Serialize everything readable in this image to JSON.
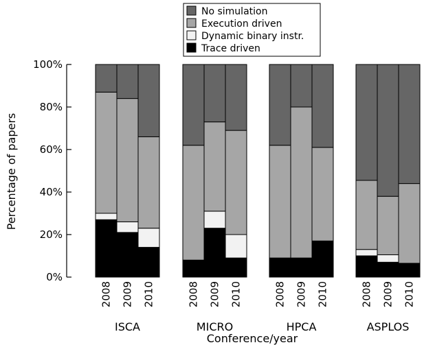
{
  "chart_data": {
    "type": "bar",
    "stacked": true,
    "ylabel": "Percentage of papers",
    "xlabel": "Conference/year",
    "ylim": [
      0,
      100
    ],
    "yticks": [
      "0%",
      "20%",
      "40%",
      "60%",
      "80%",
      "100%"
    ],
    "ytick_values": [
      0,
      20,
      40,
      60,
      80,
      100
    ],
    "grid": false,
    "legend_position": "top-center",
    "groups": [
      "ISCA",
      "MICRO",
      "HPCA",
      "ASPLOS"
    ],
    "years": [
      "2008",
      "2009",
      "2010"
    ],
    "categories": [
      "ISCA 2008",
      "ISCA 2009",
      "ISCA 2010",
      "MICRO 2008",
      "MICRO 2009",
      "MICRO 2010",
      "HPCA 2008",
      "HPCA 2009",
      "HPCA 2010",
      "ASPLOS 2008",
      "ASPLOS 2009",
      "ASPLOS 2010"
    ],
    "series": [
      {
        "name": "Trace driven",
        "color": "#000000",
        "values": [
          27,
          21,
          14,
          8,
          23,
          9,
          9,
          9,
          17,
          10,
          7,
          6.5
        ]
      },
      {
        "name": "Dynamic binary instr.",
        "color": "#f2f2f2",
        "values": [
          3,
          5,
          9,
          0,
          8,
          11,
          0,
          0,
          0,
          3,
          3.5,
          0
        ]
      },
      {
        "name": "Execution driven",
        "color": "#a6a6a6",
        "values": [
          57,
          58,
          43,
          54,
          42,
          49,
          53,
          71,
          44,
          32.5,
          27.5,
          37.5
        ]
      },
      {
        "name": "No simulation",
        "color": "#666666",
        "values": [
          13,
          16,
          34,
          38,
          27,
          31,
          38,
          20,
          39,
          54.5,
          62,
          56
        ]
      }
    ],
    "legend_order": [
      "No simulation",
      "Execution driven",
      "Dynamic binary instr.",
      "Trace driven"
    ]
  }
}
